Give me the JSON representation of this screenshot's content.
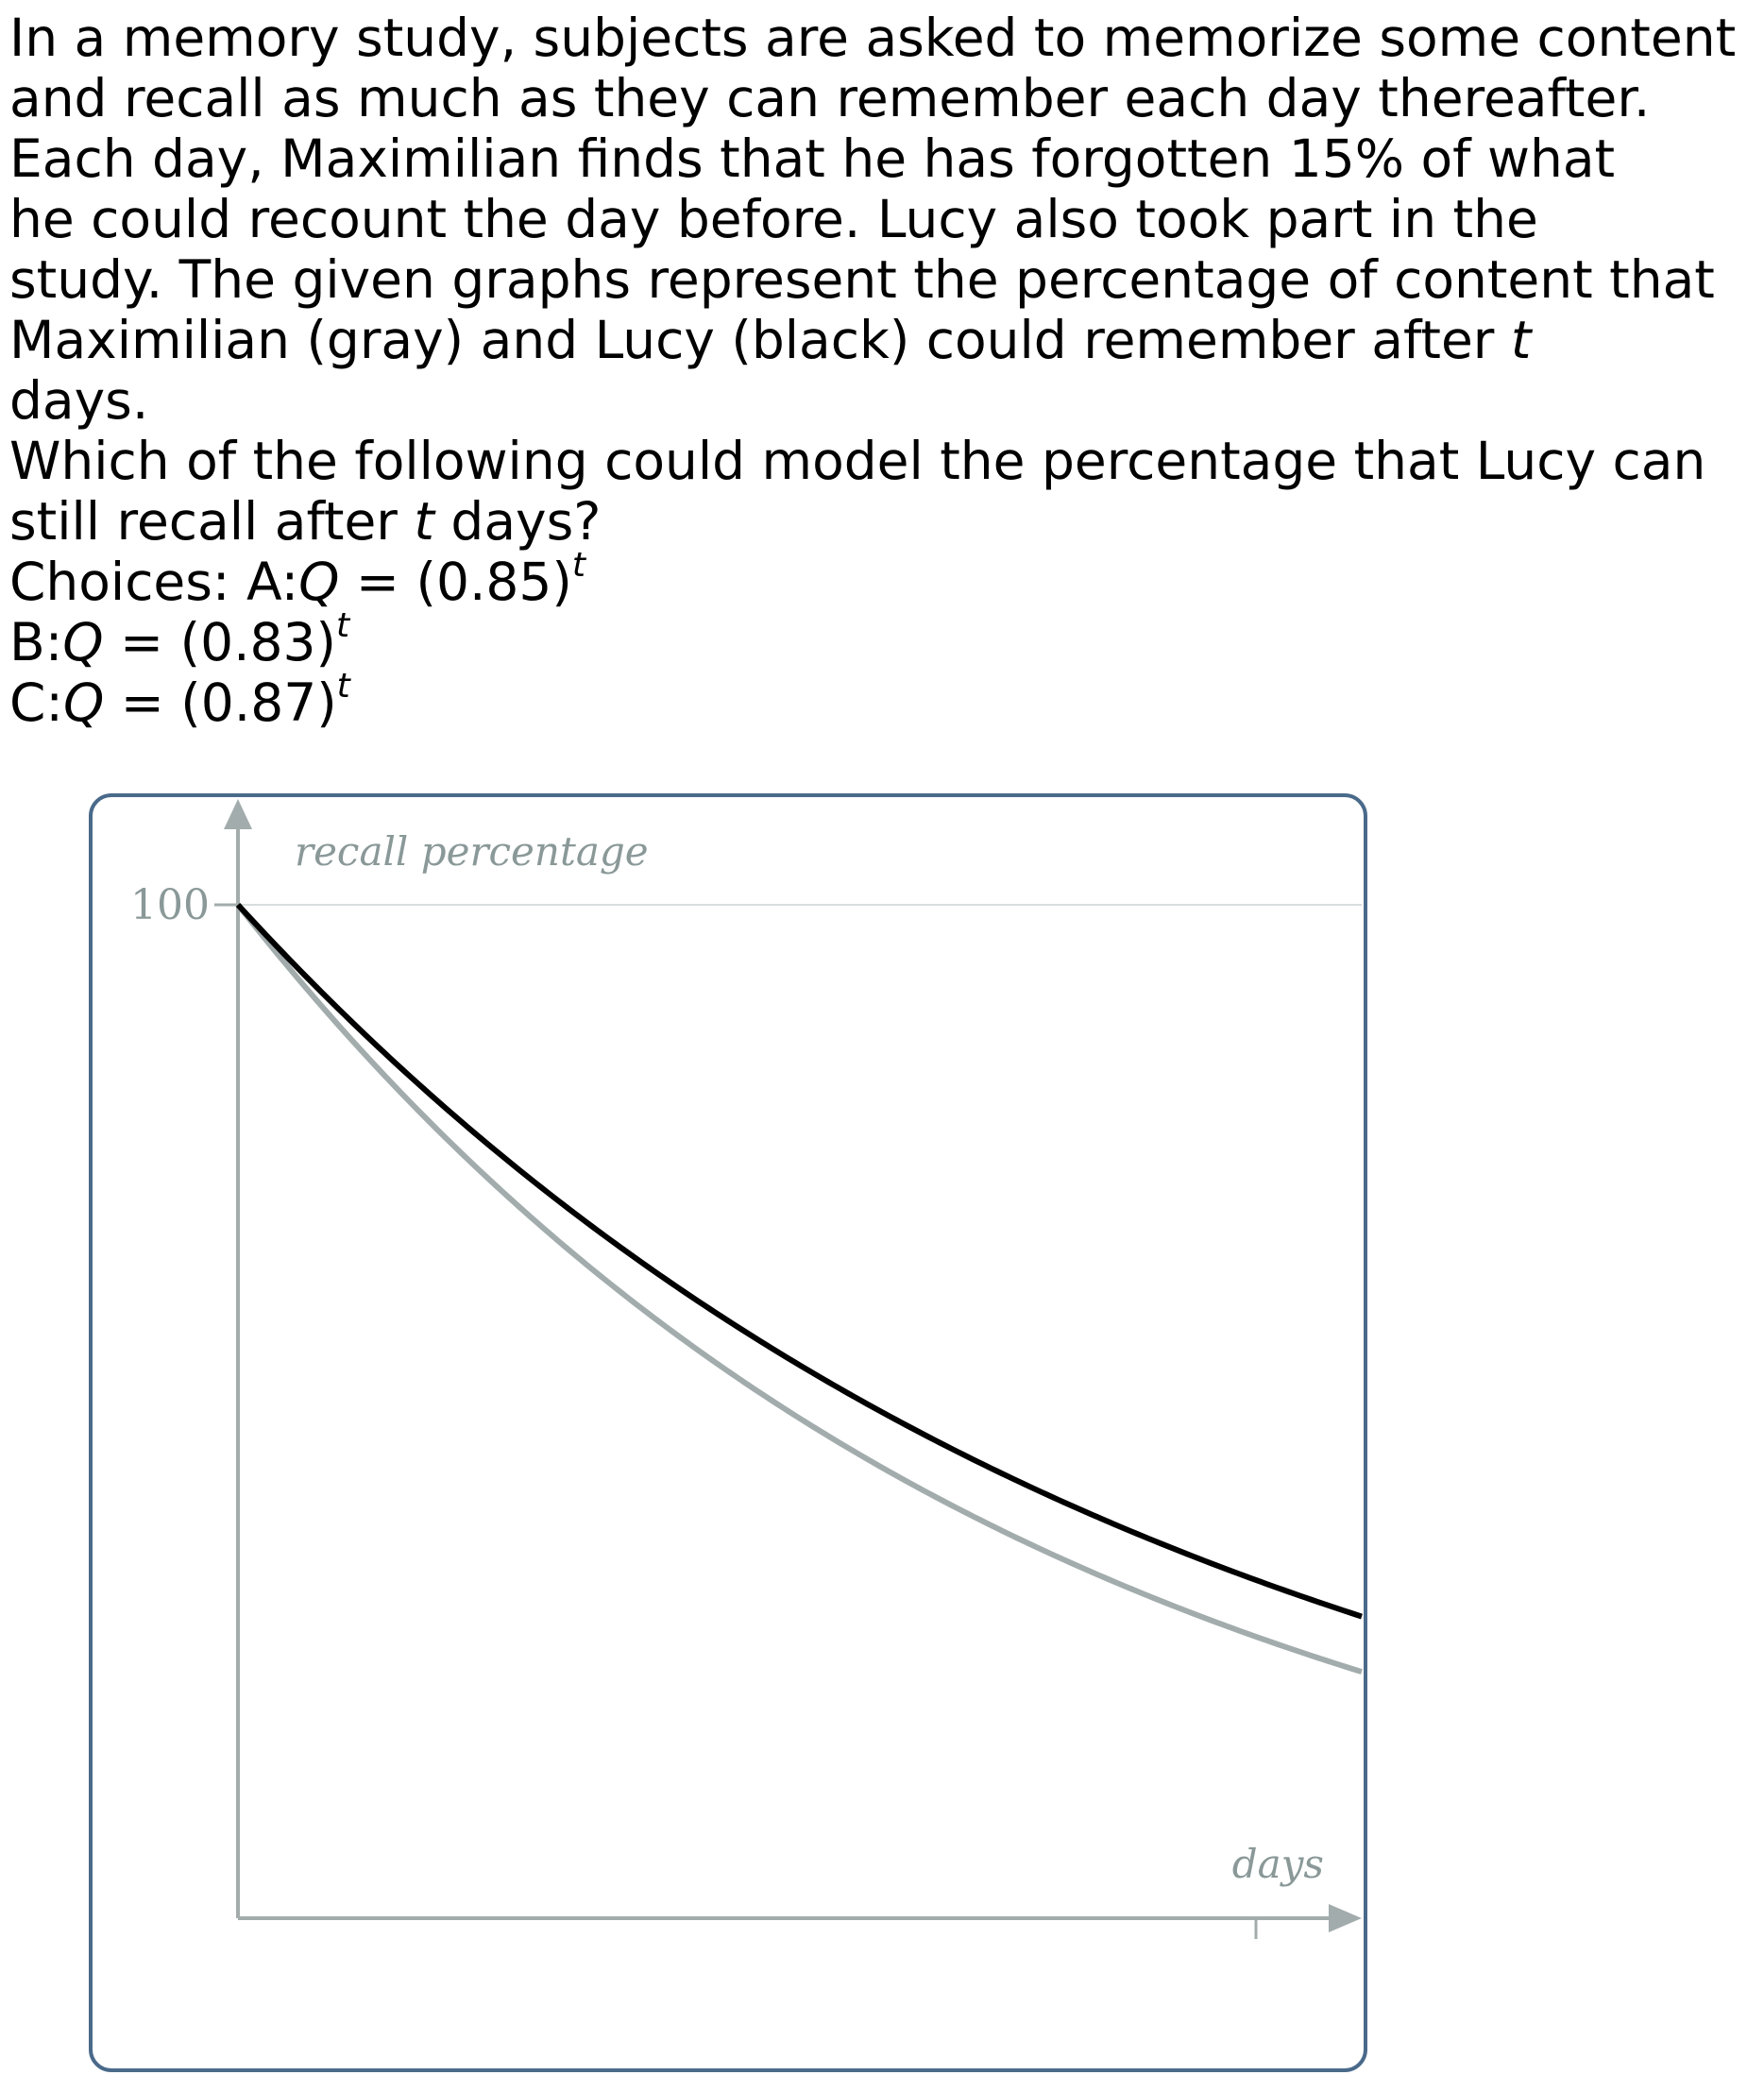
{
  "question": {
    "lines": [
      "In a memory study, subjects are asked to memorize some content",
      "and recall as much as they can remember each day thereafter.",
      "Each day, Maximilian finds that he has forgotten 15% of what",
      "he could recount the day before. Lucy also took part in the",
      "study. The given graphs represent the percentage of content that"
    ],
    "line6_pre": "Maximilian (gray) and Lucy (black) could remember after ",
    "line6_var": "t",
    "line7": "days.",
    "line8": "Which of the following could model the percentage that Lucy can",
    "line9_pre": "still recall after ",
    "line9_var": "t",
    "line9_post": " days?"
  },
  "choices": {
    "prefix": "Choices: ",
    "items": [
      {
        "label": "A:",
        "var": "Q",
        "eq": " = (0.85)",
        "exp": "t"
      },
      {
        "label": "B:",
        "var": "Q",
        "eq": " = (0.83)",
        "exp": "t"
      },
      {
        "label": "C:",
        "var": "Q",
        "eq": " = (0.87)",
        "exp": "t"
      }
    ]
  },
  "chart_data": {
    "type": "line",
    "ylabel": "recall percentage",
    "xlabel": "days",
    "y_tick_labels": [
      "100"
    ],
    "ylim": [
      0,
      100
    ],
    "series": [
      {
        "name": "Maximilian",
        "color": "#a3acac",
        "base": 0.85,
        "start": 100
      },
      {
        "name": "Lucy",
        "color": "#000000",
        "base": 0.87,
        "start": 100
      }
    ],
    "frame_color": "#4a6a8a",
    "axis_color": "#a3acac"
  }
}
